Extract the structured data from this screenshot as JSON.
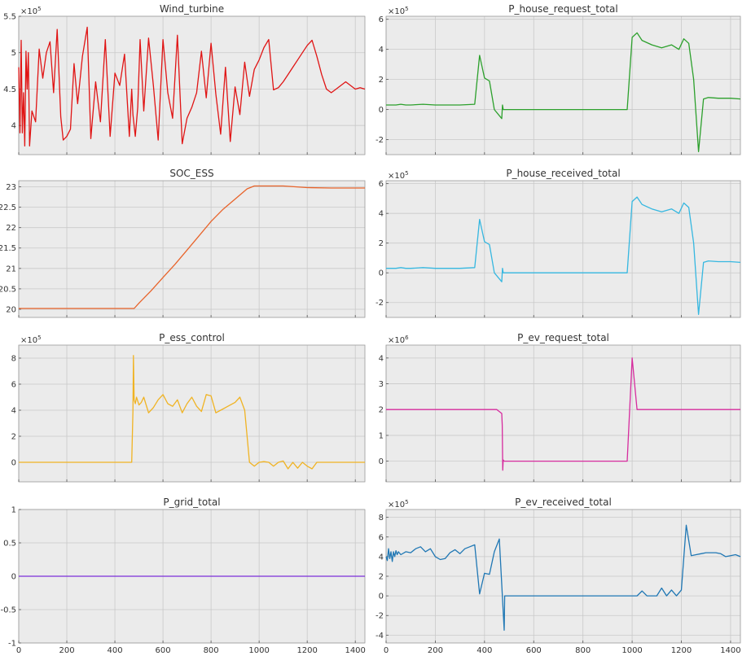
{
  "figure": {
    "background": "#ffffff",
    "axes_background": "#ebebeb",
    "grid_color": "#c9c9c9"
  },
  "chart_data": [
    {
      "type": "line",
      "title": "Wind_turbine",
      "exponent": "5",
      "xlim": [
        0,
        1440
      ],
      "ylim": [
        3.6,
        5.5
      ],
      "yticks": [
        4,
        4.5,
        5,
        5.5
      ],
      "ytick_labels": [
        "4",
        "4.5",
        "5",
        "5.5"
      ],
      "xticks": [
        0,
        200,
        400,
        600,
        800,
        1000,
        1200,
        1400
      ],
      "show_xtick_labels": false,
      "grid": true,
      "series": [
        {
          "color": "#e01414",
          "x": [
            0,
            5,
            10,
            15,
            20,
            25,
            30,
            35,
            40,
            45,
            55,
            70,
            85,
            100,
            115,
            130,
            145,
            160,
            175,
            185,
            200,
            215,
            230,
            245,
            265,
            285,
            300,
            320,
            340,
            360,
            380,
            400,
            420,
            440,
            460,
            470,
            475,
            485,
            495,
            505,
            520,
            540,
            560,
            580,
            600,
            620,
            640,
            660,
            680,
            700,
            720,
            740,
            760,
            780,
            800,
            820,
            840,
            860,
            880,
            900,
            920,
            940,
            960,
            980,
            1000,
            1020,
            1040,
            1060,
            1080,
            1100,
            1120,
            1140,
            1160,
            1180,
            1200,
            1220,
            1240,
            1260,
            1280,
            1300,
            1320,
            1340,
            1360,
            1380,
            1400,
            1420,
            1440
          ],
          "y": [
            4.8,
            3.9,
            5.17,
            3.9,
            4.45,
            3.72,
            5.02,
            4.5,
            5.0,
            3.72,
            4.2,
            4.05,
            5.05,
            4.65,
            5.0,
            5.15,
            4.45,
            5.32,
            4.12,
            3.8,
            3.85,
            3.95,
            4.85,
            4.3,
            4.95,
            5.35,
            3.82,
            4.6,
            4.05,
            5.18,
            3.85,
            4.72,
            4.55,
            4.98,
            3.85,
            4.5,
            4.15,
            3.85,
            4.25,
            5.18,
            4.2,
            5.2,
            4.55,
            3.8,
            5.18,
            4.45,
            4.1,
            5.24,
            3.75,
            4.1,
            4.25,
            4.45,
            5.02,
            4.38,
            5.13,
            4.43,
            3.88,
            4.8,
            3.78,
            4.53,
            4.15,
            4.87,
            4.4,
            4.77,
            4.9,
            5.07,
            5.18,
            4.49,
            4.52,
            4.6,
            4.7,
            4.8,
            4.9,
            5.0,
            5.1,
            5.17,
            4.95,
            4.7,
            4.5,
            4.45,
            4.5,
            4.55,
            4.6,
            4.55,
            4.5,
            4.52,
            4.5
          ]
        }
      ]
    },
    {
      "type": "line",
      "title": "P_house_request_total",
      "exponent": "5",
      "xlim": [
        0,
        1440
      ],
      "ylim": [
        -3.0,
        6.2
      ],
      "yticks": [
        -2,
        0,
        2,
        4,
        6
      ],
      "ytick_labels": [
        "-2",
        "0",
        "2",
        "4",
        "6"
      ],
      "xticks": [
        0,
        200,
        400,
        600,
        800,
        1000,
        1200,
        1400
      ],
      "show_xtick_labels": false,
      "grid": true,
      "series": [
        {
          "color": "#2ca02c",
          "x": [
            0,
            40,
            60,
            80,
            100,
            150,
            200,
            250,
            300,
            360,
            380,
            400,
            420,
            440,
            470,
            473,
            476,
            480,
            500,
            600,
            700,
            800,
            900,
            980,
            1000,
            1020,
            1040,
            1080,
            1120,
            1160,
            1190,
            1210,
            1230,
            1250,
            1270,
            1290,
            1310,
            1350,
            1400,
            1440
          ],
          "y": [
            0.3,
            0.3,
            0.35,
            0.3,
            0.3,
            0.35,
            0.3,
            0.3,
            0.3,
            0.35,
            3.6,
            2.1,
            1.9,
            0.0,
            -0.6,
            0.3,
            0.0,
            0.0,
            0.0,
            0.0,
            0.0,
            0.0,
            0.0,
            0.0,
            4.8,
            5.1,
            4.6,
            4.3,
            4.1,
            4.3,
            4.0,
            4.7,
            4.4,
            2.0,
            -2.8,
            0.7,
            0.8,
            0.75,
            0.75,
            0.7
          ]
        }
      ]
    },
    {
      "type": "line",
      "title": "SOC_ESS",
      "exponent": "",
      "xlim": [
        0,
        1440
      ],
      "ylim": [
        19.8,
        23.15
      ],
      "yticks": [
        20,
        20.5,
        21,
        21.5,
        22,
        22.5,
        23
      ],
      "ytick_labels": [
        "20",
        "20.5",
        "21",
        "21.5",
        "22",
        "22.5",
        "23"
      ],
      "xticks": [
        0,
        200,
        400,
        600,
        800,
        1000,
        1200,
        1400
      ],
      "show_xtick_labels": false,
      "grid": true,
      "series": [
        {
          "color": "#e8632a",
          "x": [
            0,
            200,
            470,
            480,
            500,
            550,
            600,
            650,
            700,
            750,
            800,
            850,
            900,
            950,
            980,
            1000,
            1100,
            1200,
            1300,
            1440
          ],
          "y": [
            20.02,
            20.02,
            20.02,
            20.02,
            20.15,
            20.45,
            20.78,
            21.1,
            21.45,
            21.8,
            22.15,
            22.45,
            22.7,
            22.95,
            23.02,
            23.02,
            23.02,
            22.98,
            22.97,
            22.97
          ]
        }
      ]
    },
    {
      "type": "line",
      "title": "P_house_received_total",
      "exponent": "5",
      "xlim": [
        0,
        1440
      ],
      "ylim": [
        -3.0,
        6.2
      ],
      "yticks": [
        -2,
        0,
        2,
        4,
        6
      ],
      "ytick_labels": [
        "-2",
        "0",
        "2",
        "4",
        "6"
      ],
      "xticks": [
        0,
        200,
        400,
        600,
        800,
        1000,
        1200,
        1400
      ],
      "show_xtick_labels": false,
      "grid": true,
      "series": [
        {
          "color": "#35b7e0",
          "x": [
            0,
            40,
            60,
            80,
            100,
            150,
            200,
            250,
            300,
            360,
            380,
            400,
            420,
            440,
            470,
            473,
            476,
            480,
            500,
            600,
            700,
            800,
            900,
            980,
            1000,
            1020,
            1040,
            1080,
            1120,
            1160,
            1190,
            1210,
            1230,
            1250,
            1270,
            1290,
            1310,
            1350,
            1400,
            1440
          ],
          "y": [
            0.3,
            0.3,
            0.35,
            0.3,
            0.3,
            0.35,
            0.3,
            0.3,
            0.3,
            0.35,
            3.6,
            2.1,
            1.9,
            0.0,
            -0.6,
            0.3,
            0.0,
            0.0,
            0.0,
            0.0,
            0.0,
            0.0,
            0.0,
            0.0,
            4.8,
            5.1,
            4.6,
            4.3,
            4.1,
            4.3,
            4.0,
            4.7,
            4.4,
            2.0,
            -2.8,
            0.7,
            0.8,
            0.75,
            0.75,
            0.7
          ]
        }
      ]
    },
    {
      "type": "line",
      "title": "P_ess_control",
      "exponent": "5",
      "xlim": [
        0,
        1440
      ],
      "ylim": [
        -1.5,
        9.0
      ],
      "yticks": [
        0,
        2,
        4,
        6,
        8
      ],
      "ytick_labels": [
        "0",
        "2",
        "4",
        "6",
        "8"
      ],
      "xticks": [
        0,
        200,
        400,
        600,
        800,
        1000,
        1200,
        1400
      ],
      "show_xtick_labels": false,
      "grid": true,
      "series": [
        {
          "color": "#f0b323",
          "x": [
            0,
            470,
            475,
            477,
            480,
            485,
            490,
            500,
            510,
            520,
            540,
            560,
            580,
            600,
            620,
            640,
            660,
            680,
            700,
            720,
            740,
            760,
            780,
            800,
            820,
            840,
            860,
            880,
            900,
            920,
            940,
            960,
            980,
            1000,
            1020,
            1040,
            1060,
            1080,
            1100,
            1120,
            1140,
            1160,
            1180,
            1200,
            1220,
            1240,
            1260,
            1280,
            1300,
            1440
          ],
          "y": [
            0.0,
            0.0,
            3.9,
            8.2,
            4.8,
            4.5,
            5.0,
            4.4,
            4.6,
            5.0,
            3.8,
            4.2,
            4.8,
            5.2,
            4.5,
            4.3,
            4.8,
            3.8,
            4.5,
            5.0,
            4.3,
            3.9,
            5.2,
            5.1,
            3.8,
            4.0,
            4.2,
            4.4,
            4.6,
            5.0,
            4.0,
            0.0,
            -0.3,
            0.0,
            0.05,
            0.0,
            -0.3,
            0.0,
            0.1,
            -0.5,
            0.0,
            -0.45,
            0.0,
            -0.3,
            -0.5,
            0.0,
            0.0,
            0.0,
            0.0,
            0.0
          ]
        }
      ]
    },
    {
      "type": "line",
      "title": "P_ev_request_total",
      "exponent": "6",
      "xlim": [
        0,
        1440
      ],
      "ylim": [
        -0.8,
        4.5
      ],
      "yticks": [
        0,
        1,
        2,
        3,
        4
      ],
      "ytick_labels": [
        "0",
        "1",
        "2",
        "3",
        "4"
      ],
      "xticks": [
        0,
        200,
        400,
        600,
        800,
        1000,
        1200,
        1400
      ],
      "show_xtick_labels": false,
      "grid": true,
      "series": [
        {
          "color": "#d62c9e",
          "x": [
            0,
            450,
            470,
            472,
            474,
            476,
            480,
            500,
            980,
            1000,
            1020,
            1100,
            1200,
            1300,
            1440
          ],
          "y": [
            2.0,
            2.0,
            1.85,
            1.4,
            -0.35,
            0.05,
            0.0,
            0.0,
            0.0,
            4.0,
            2.0,
            2.0,
            2.0,
            2.0,
            2.0
          ]
        }
      ]
    },
    {
      "type": "line",
      "title": "P_grid_total",
      "exponent": "",
      "xlim": [
        0,
        1440
      ],
      "ylim": [
        -1,
        1
      ],
      "yticks": [
        -1,
        -0.5,
        0,
        0.5,
        1
      ],
      "ytick_labels": [
        "-1",
        "-0.5",
        "0",
        "0.5",
        "1"
      ],
      "xticks": [
        0,
        200,
        400,
        600,
        800,
        1000,
        1200,
        1400
      ],
      "xtick_labels": [
        "0",
        "200",
        "400",
        "600",
        "800",
        "1000",
        "1200",
        "1400"
      ],
      "show_xtick_labels": true,
      "grid": true,
      "series": [
        {
          "color": "#7b2fd9",
          "x": [
            0,
            1440
          ],
          "y": [
            0,
            0
          ]
        }
      ]
    },
    {
      "type": "line",
      "title": "P_ev_received_total",
      "exponent": "5",
      "xlim": [
        0,
        1440
      ],
      "ylim": [
        -4.8,
        8.8
      ],
      "yticks": [
        -4,
        -2,
        0,
        2,
        4,
        6,
        8
      ],
      "ytick_labels": [
        "-4",
        "-2",
        "0",
        "2",
        "4",
        "6",
        "8"
      ],
      "xticks": [
        0,
        200,
        400,
        600,
        800,
        1000,
        1200,
        1400
      ],
      "xtick_labels": [
        "0",
        "200",
        "400",
        "600",
        "800",
        "1000",
        "1200",
        "1400"
      ],
      "show_xtick_labels": true,
      "grid": true,
      "series": [
        {
          "color": "#1f77b4",
          "x": [
            0,
            5,
            10,
            15,
            20,
            25,
            30,
            35,
            40,
            45,
            50,
            60,
            80,
            100,
            120,
            140,
            160,
            180,
            200,
            220,
            240,
            260,
            280,
            300,
            320,
            340,
            360,
            380,
            400,
            420,
            440,
            460,
            480,
            482,
            484,
            486,
            500,
            600,
            700,
            800,
            900,
            1000,
            1020,
            1040,
            1060,
            1080,
            1100,
            1120,
            1140,
            1160,
            1180,
            1200,
            1220,
            1240,
            1260,
            1280,
            1300,
            1320,
            1340,
            1360,
            1380,
            1400,
            1420,
            1440
          ],
          "y": [
            4.0,
            3.6,
            4.8,
            3.8,
            4.5,
            3.5,
            4.5,
            4.0,
            4.6,
            4.2,
            4.5,
            4.2,
            4.5,
            4.4,
            4.8,
            5.0,
            4.5,
            4.8,
            4.0,
            3.7,
            3.8,
            4.4,
            4.7,
            4.3,
            4.8,
            5.0,
            5.2,
            0.2,
            2.3,
            2.2,
            4.5,
            5.8,
            -3.5,
            0.0,
            0.0,
            0.0,
            0.0,
            0.0,
            0.0,
            0.0,
            0.0,
            0.0,
            0.0,
            0.5,
            0.0,
            0.0,
            0.0,
            0.8,
            0.0,
            0.6,
            0.0,
            0.6,
            7.2,
            4.1,
            4.2,
            4.3,
            4.4,
            4.4,
            4.4,
            4.3,
            4.0,
            4.1,
            4.2,
            4.0
          ]
        }
      ]
    }
  ]
}
